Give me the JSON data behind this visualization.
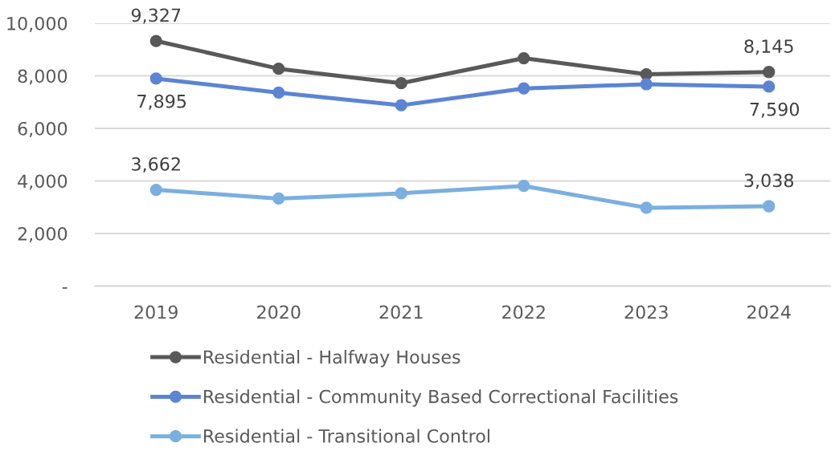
{
  "chart_data": {
    "type": "line",
    "categories": [
      "2019",
      "2020",
      "2021",
      "2022",
      "2023",
      "2024"
    ],
    "series": [
      {
        "name": "Residential - Halfway Houses",
        "color": "#595959",
        "values": [
          9327,
          8270,
          7720,
          8670,
          8060,
          8145
        ],
        "value_labels": [
          "9,327",
          null,
          null,
          null,
          null,
          "8,145"
        ]
      },
      {
        "name": "Residential - Community Based Correctional Facilities",
        "color": "#5b85d3",
        "values": [
          7895,
          7360,
          6880,
          7520,
          7680,
          7590
        ],
        "value_labels": [
          "7,895",
          null,
          null,
          null,
          null,
          "7,590"
        ]
      },
      {
        "name": "Residential - Transitional Control",
        "color": "#7aafe0",
        "values": [
          3662,
          3330,
          3530,
          3810,
          2980,
          3038
        ],
        "value_labels": [
          "3,662",
          null,
          null,
          null,
          null,
          "3,038"
        ]
      }
    ],
    "ylim": [
      0,
      10000
    ],
    "yticks": [
      {
        "value": 0,
        "label": "-"
      },
      {
        "value": 2000,
        "label": "2,000"
      },
      {
        "value": 4000,
        "label": "4,000"
      },
      {
        "value": 6000,
        "label": "6,000"
      },
      {
        "value": 8000,
        "label": "8,000"
      },
      {
        "value": 10000,
        "label": "10,000"
      }
    ],
    "grid": "y",
    "legend": "bottom",
    "marker": "circle",
    "line_style": "solid"
  }
}
